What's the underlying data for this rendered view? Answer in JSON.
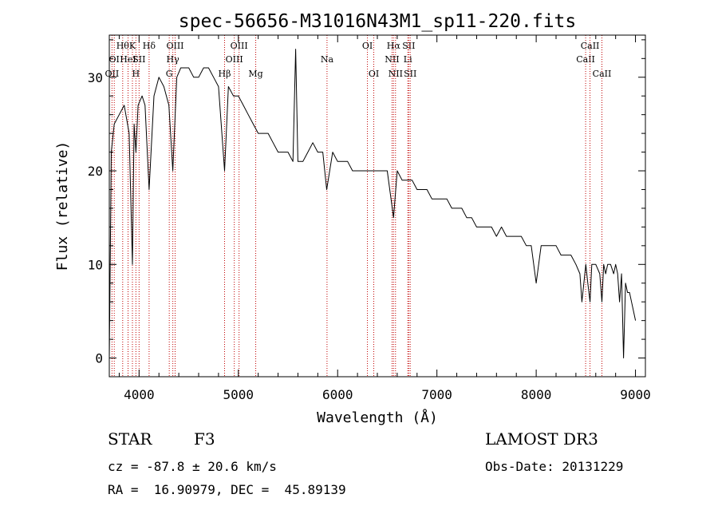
{
  "chart_data": {
    "type": "line",
    "title": "spec-56656-M31016N43M1_sp11-220.fits",
    "xlabel": "Wavelength (Å)",
    "ylabel": "Flux (relative)",
    "xlim": [
      3700,
      9100
    ],
    "ylim": [
      -2,
      34.5
    ],
    "xticks": [
      4000,
      5000,
      6000,
      7000,
      8000,
      9000
    ],
    "yticks": [
      0,
      10,
      20,
      30
    ],
    "x_tick_labels": [
      "4000",
      "5000",
      "6000",
      "7000",
      "8000",
      "9000"
    ],
    "y_tick_labels": [
      "0",
      "10",
      "20",
      "30"
    ],
    "series": [
      {
        "name": "spectrum",
        "x": [
          3700,
          3720,
          3750,
          3800,
          3850,
          3900,
          3933,
          3950,
          3968,
          3990,
          4030,
          4060,
          4101,
          4150,
          4200,
          4250,
          4300,
          4340,
          4380,
          4420,
          4460,
          4500,
          4550,
          4600,
          4650,
          4700,
          4750,
          4800,
          4861,
          4900,
          4950,
          5000,
          5050,
          5100,
          5150,
          5200,
          5250,
          5300,
          5350,
          5400,
          5450,
          5500,
          5550,
          5577,
          5600,
          5650,
          5700,
          5750,
          5800,
          5850,
          5890,
          5950,
          6000,
          6050,
          6100,
          6150,
          6200,
          6250,
          6300,
          6350,
          6400,
          6450,
          6500,
          6563,
          6600,
          6650,
          6700,
          6750,
          6800,
          6850,
          6900,
          6950,
          7000,
          7050,
          7100,
          7150,
          7200,
          7250,
          7300,
          7350,
          7400,
          7450,
          7500,
          7550,
          7600,
          7650,
          7700,
          7750,
          7800,
          7850,
          7900,
          7950,
          8000,
          8050,
          8100,
          8150,
          8200,
          8250,
          8300,
          8350,
          8400,
          8440,
          8460,
          8500,
          8520,
          8542,
          8560,
          8600,
          8640,
          8662,
          8680,
          8700,
          8720,
          8750,
          8780,
          8800,
          8820,
          8840,
          8860,
          8880,
          8900,
          8920,
          8940,
          8960,
          8980,
          9000
        ],
        "y": [
          0,
          22,
          25,
          26,
          27,
          24,
          10,
          25,
          22,
          27,
          28,
          27,
          18,
          28,
          30,
          29,
          27,
          20,
          30,
          31,
          31,
          31,
          30,
          30,
          31,
          31,
          30,
          29,
          20,
          29,
          28,
          28,
          27,
          26,
          25,
          24,
          24,
          24,
          23,
          22,
          22,
          22,
          21,
          33,
          21,
          21,
          22,
          23,
          22,
          22,
          18,
          22,
          21,
          21,
          21,
          20,
          20,
          20,
          20,
          20,
          20,
          20,
          20,
          15,
          20,
          19,
          19,
          19,
          18,
          18,
          18,
          17,
          17,
          17,
          17,
          16,
          16,
          16,
          15,
          15,
          14,
          14,
          14,
          14,
          13,
          14,
          13,
          13,
          13,
          13,
          12,
          12,
          8,
          12,
          12,
          12,
          12,
          11,
          11,
          11,
          10,
          9,
          6,
          10,
          8,
          6,
          10,
          10,
          9,
          6,
          10,
          9,
          10,
          10,
          9,
          10,
          9,
          6,
          9,
          0,
          8,
          7,
          7,
          6,
          5,
          4
        ],
        "color": "#000000"
      }
    ],
    "line_markers": [
      {
        "wavelength": 3727,
        "label": "OII",
        "row": 3
      },
      {
        "wavelength": 3750,
        "label": "OI",
        "row": 2
      },
      {
        "wavelength": 3835,
        "label": "Hθ",
        "row": 1
      },
      {
        "wavelength": 3889,
        "label": "HeI",
        "row": 2
      },
      {
        "wavelength": 3933,
        "label": "K",
        "row": 1
      },
      {
        "wavelength": 3968,
        "label": "H",
        "row": 3
      },
      {
        "wavelength": 4000,
        "label": "SII",
        "row": 2
      },
      {
        "wavelength": 4101,
        "label": "Hδ",
        "row": 1
      },
      {
        "wavelength": 4304,
        "label": "G",
        "row": 3
      },
      {
        "wavelength": 4340,
        "label": "Hγ",
        "row": 2
      },
      {
        "wavelength": 4363,
        "label": "OIII",
        "row": 1
      },
      {
        "wavelength": 4861,
        "label": "Hβ",
        "row": 3
      },
      {
        "wavelength": 4959,
        "label": "OIII",
        "row": 2
      },
      {
        "wavelength": 5007,
        "label": "OIII",
        "row": 1
      },
      {
        "wavelength": 5175,
        "label": "Mg",
        "row": 3
      },
      {
        "wavelength": 5893,
        "label": "Na",
        "row": 2
      },
      {
        "wavelength": 6300,
        "label": "OI",
        "row": 1
      },
      {
        "wavelength": 6364,
        "label": "OI",
        "row": 3
      },
      {
        "wavelength": 6548,
        "label": "NII",
        "row": 2
      },
      {
        "wavelength": 6563,
        "label": "Hα",
        "row": 1
      },
      {
        "wavelength": 6583,
        "label": "NII",
        "row": 3
      },
      {
        "wavelength": 6707,
        "label": "Li",
        "row": 2
      },
      {
        "wavelength": 6716,
        "label": "SII",
        "row": 1
      },
      {
        "wavelength": 6731,
        "label": "SII",
        "row": 3
      },
      {
        "wavelength": 8498,
        "label": "CaII",
        "row": 2
      },
      {
        "wavelength": 8542,
        "label": "CaII",
        "row": 1
      },
      {
        "wavelength": 8662,
        "label": "CaII",
        "row": 3
      }
    ]
  },
  "info": {
    "object_class": "STAR",
    "subclass": "F3",
    "survey": "LAMOST DR3",
    "cz_line": "cz = -87.8 ± 20.6 km/s",
    "obs_date_line": "Obs-Date: 20131229",
    "radec_line": "RA =  16.90979, DEC =  45.89139"
  }
}
